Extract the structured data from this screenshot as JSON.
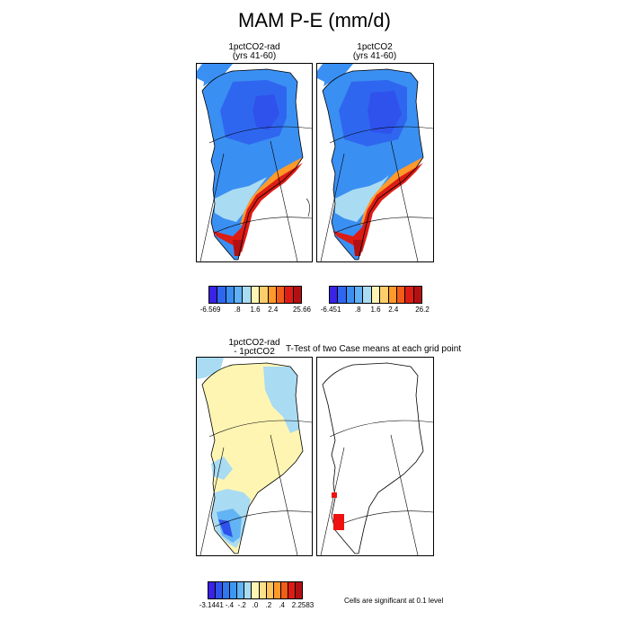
{
  "title": "MAM P-E (mm/d)",
  "panels": {
    "rad": {
      "line1": "1pctCO2-rad",
      "line2": "(yrs 41-60)"
    },
    "ctl": {
      "line1": "1pctCO2",
      "line2": "(yrs 41-60)"
    },
    "diff": {
      "line1": "1pctCO2-rad",
      "line2": "- 1pctCO2"
    },
    "ttest": {
      "title": "T-Test of two Case means at each grid point"
    }
  },
  "colorbars": {
    "rad": {
      "colors": [
        "#3a22e6",
        "#2f66ef",
        "#3a8ff2",
        "#5fb0f5",
        "#a9dbf3",
        "#fff5b3",
        "#ffce6a",
        "#ff9a2a",
        "#f25d18",
        "#dd1c14",
        "#b31013"
      ],
      "labels": [
        "-6.569",
        ".8",
        "1.6",
        "2.4",
        "25.66"
      ]
    },
    "ctl": {
      "colors": [
        "#3a22e6",
        "#2f66ef",
        "#3a8ff2",
        "#5fb0f5",
        "#a9dbf3",
        "#fff5b3",
        "#ffce6a",
        "#ff9a2a",
        "#f25d18",
        "#dd1c14",
        "#b31013"
      ],
      "labels": [
        "-6.451",
        ".8",
        "1.6",
        "2.4",
        "26.2"
      ]
    },
    "diff": {
      "colors": [
        "#3a22e6",
        "#2f52ec",
        "#3078ef",
        "#3b98f2",
        "#62b4f4",
        "#a9dbf3",
        "#fff5b3",
        "#ffe08a",
        "#ffc35c",
        "#ff9a2a",
        "#f25d18",
        "#dd1c14",
        "#b31013"
      ],
      "labels": [
        "-3.1441",
        "-.4",
        "-.2",
        ".0",
        ".2",
        ".4",
        "2.2583"
      ]
    }
  },
  "note": "Cells are significant at 0.1 level",
  "colors": {
    "deep_blue": "#2f52ec",
    "mid_blue": "#3a8ff2",
    "light_blue": "#a9dbf3",
    "pale_yellow": "#fff5b3",
    "orange": "#ff9a2a",
    "red": "#dd1c14",
    "dark_red": "#b31013"
  }
}
